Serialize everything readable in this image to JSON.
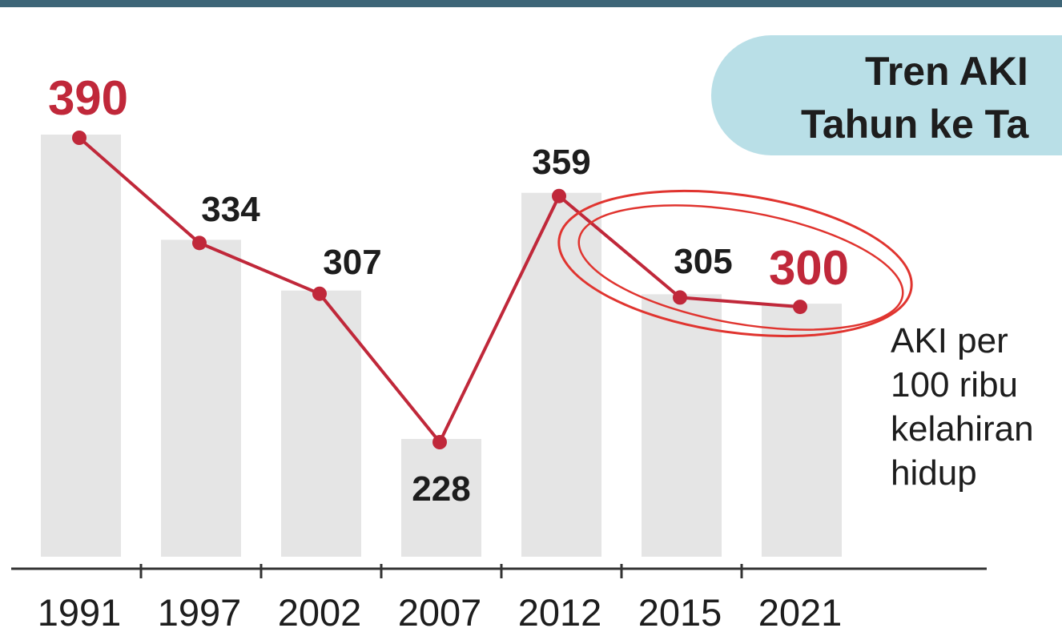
{
  "title": [
    "Tren AKI",
    "Tahun ke Ta"
  ],
  "unit_label": "AKI per\n100 ribu\nkelahiran\nhidup",
  "colors": {
    "accent": "#c0283a",
    "bar": "#e5e5e5",
    "label": "#1d1d1d",
    "title_pill": "#b9dfe7",
    "top_rule": "#3d6577"
  },
  "chart_data": {
    "type": "bar",
    "title": "Tren AKI Tahun ke Ta",
    "categories": [
      "1991",
      "1997",
      "2002",
      "2007",
      "2012",
      "2015",
      "2021"
    ],
    "series": [
      {
        "values": [
          390,
          334,
          307,
          228,
          359,
          305,
          300
        ]
      }
    ],
    "overlay": "line",
    "highlighted_labels": [
      "1991",
      "2021"
    ],
    "annotation": "red hand-drawn ellipse circling 2012–2021 segment",
    "ylabel": "AKI per 100 ribu kelahiran hidup",
    "ylim": [
      0,
      390
    ],
    "grid": false,
    "legend": "none"
  }
}
